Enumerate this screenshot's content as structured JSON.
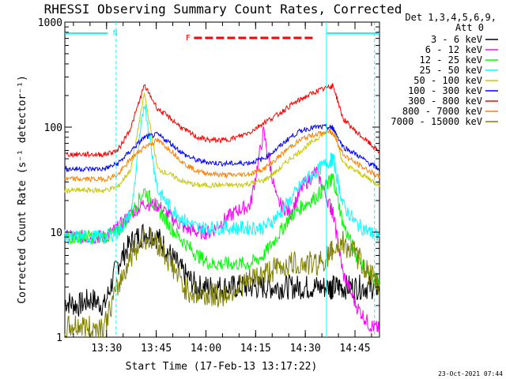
{
  "chart_data": {
    "type": "line",
    "title": "RHESSI Observing Summary Count Rates, Corrected",
    "xlabel": "Start Time (17-Feb-13 13:17:22)",
    "ylabel": "Corrected Count Rate (s⁻¹ detector⁻¹)",
    "y_scale": "log",
    "ylim": [
      1,
      1000
    ],
    "y_ticks": [
      1,
      10,
      100,
      1000
    ],
    "y_tick_labels": [
      "1",
      "10",
      "100",
      "1000"
    ],
    "xlim_minutes": [
      0,
      95
    ],
    "x_ticks": [
      {
        "label": "13:30",
        "min": 12.6
      },
      {
        "label": "13:45",
        "min": 27.6
      },
      {
        "label": "14:00",
        "min": 42.6
      },
      {
        "label": "14:15",
        "min": 57.6
      },
      {
        "label": "14:30",
        "min": 72.6
      },
      {
        "label": "14:45",
        "min": 87.6
      }
    ],
    "legend_header": [
      "Det 1,3,4,5,6,9,",
      "Att 0"
    ],
    "legend_placement": "right",
    "flags": {
      "N_label": "N",
      "N_color": "#00ffff",
      "F_label": "F",
      "F_color": "#ff0000"
    },
    "x": [
      0,
      4,
      8,
      12,
      16,
      20,
      24,
      28,
      32,
      36,
      40,
      44,
      48,
      52,
      56,
      60,
      64,
      68,
      72,
      76,
      80,
      81,
      84,
      88,
      92,
      95
    ],
    "series": [
      {
        "name": "3 - 6 keV",
        "color": "#000000",
        "values": [
          2.2,
          2.0,
          2.3,
          2.0,
          5,
          8,
          10,
          9,
          6,
          4,
          3,
          3,
          3,
          3,
          3,
          3,
          3,
          3,
          3,
          3,
          3,
          3,
          3,
          3,
          3,
          3
        ]
      },
      {
        "name": "6 - 12 keV",
        "color": "#ff00ff",
        "values": [
          9,
          9,
          9,
          9,
          11,
          15,
          19,
          18,
          14,
          11,
          10,
          10,
          13,
          16,
          18,
          90,
          20,
          15,
          28,
          38,
          18,
          15,
          4,
          2,
          1.3,
          1.2
        ]
      },
      {
        "name": "12 - 25 keV",
        "color": "#00ff00",
        "values": [
          9,
          9,
          9,
          9,
          10,
          15,
          25,
          17,
          11,
          8,
          6,
          5,
          5,
          5,
          5,
          6,
          9,
          14,
          18,
          22,
          30,
          33,
          12,
          6,
          4,
          3.5
        ]
      },
      {
        "name": "25 - 50 keV",
        "color": "#00ffff",
        "values": [
          9,
          9,
          9,
          9,
          10,
          15,
          180,
          25,
          17,
          13,
          11,
          11,
          11,
          11,
          11,
          11,
          14,
          20,
          30,
          38,
          48,
          50,
          18,
          12,
          10,
          9
        ]
      },
      {
        "name": "50 - 100 keV",
        "color": "#c8c800",
        "values": [
          25,
          25,
          25,
          25,
          27,
          40,
          210,
          40,
          35,
          30,
          28,
          28,
          28,
          28,
          29,
          31,
          38,
          50,
          62,
          78,
          95,
          100,
          45,
          38,
          32,
          28
        ]
      },
      {
        "name": "100 - 300 keV",
        "color": "#0000ff",
        "values": [
          40,
          40,
          40,
          40,
          45,
          60,
          80,
          85,
          70,
          55,
          48,
          46,
          45,
          45,
          46,
          50,
          62,
          80,
          95,
          100,
          100,
          98,
          65,
          55,
          45,
          40
        ]
      },
      {
        "name": "300 - 800 keV",
        "color": "#ff0000",
        "values": [
          55,
          55,
          55,
          55,
          60,
          100,
          250,
          150,
          120,
          95,
          80,
          75,
          75,
          80,
          90,
          110,
          130,
          160,
          190,
          220,
          240,
          250,
          120,
          90,
          70,
          58
        ]
      },
      {
        "name": "800 - 7000 keV",
        "color": "#ff8000",
        "values": [
          32,
          32,
          32,
          32,
          35,
          50,
          65,
          75,
          60,
          45,
          38,
          36,
          35,
          35,
          36,
          40,
          50,
          65,
          78,
          86,
          90,
          88,
          55,
          45,
          38,
          33
        ]
      },
      {
        "name": "7000 - 15000 keV",
        "color": "#808000",
        "values": [
          1.2,
          1.3,
          1.2,
          1.3,
          3,
          6,
          9,
          8,
          5,
          3,
          2.5,
          2.5,
          2.5,
          3,
          3.5,
          4,
          4.5,
          5,
          5,
          5,
          6,
          7,
          8,
          6,
          4,
          3
        ]
      }
    ]
  },
  "timestamp": "23-Oct-2021 07:44"
}
